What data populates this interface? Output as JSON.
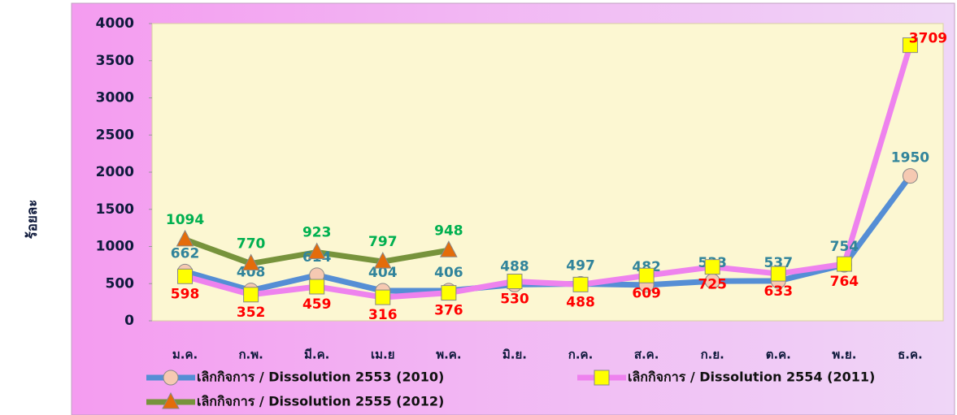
{
  "chart_data": {
    "type": "line",
    "y_label": "ร้อยละ",
    "categories": [
      "ม.ค.",
      "ก.พ.",
      "มี.ค.",
      "เม.ย",
      "พ.ค.",
      "มิ.ย.",
      "ก.ค.",
      "ส.ค.",
      "ก.ย.",
      "ต.ค.",
      "พ.ย.",
      "ธ.ค."
    ],
    "series": [
      {
        "name": "เลิกกิจการ / Dissolution 2553 (2010)",
        "color": "#558ed5",
        "marker": "circle",
        "marker_color": "#f6c9b2",
        "label_color": "#31849b",
        "values": [
          662,
          408,
          614,
          404,
          406,
          488,
          497,
          482,
          533,
          537,
          754,
          1950
        ]
      },
      {
        "name": "เลิกกิจการ / Dissolution 2554 (2011)",
        "color": "#ee82ee",
        "marker": "square",
        "marker_color": "#ffff00",
        "label_color": "#ff0000",
        "values": [
          598,
          352,
          459,
          316,
          376,
          530,
          488,
          609,
          725,
          633,
          764,
          3709
        ]
      },
      {
        "name": "เลิกกิจการ / Dissolution 2555 (2012)",
        "color": "#77933c",
        "marker": "triangle",
        "marker_color": "#e46c0a",
        "label_color": "#00b050",
        "values": [
          1094,
          770,
          923,
          797,
          948,
          null,
          null,
          null,
          null,
          null,
          null,
          null
        ]
      }
    ],
    "ylim": [
      0,
      4000
    ],
    "yticks": [
      0,
      500,
      1000,
      1500,
      2000,
      2500,
      3000,
      3500,
      4000
    ]
  }
}
